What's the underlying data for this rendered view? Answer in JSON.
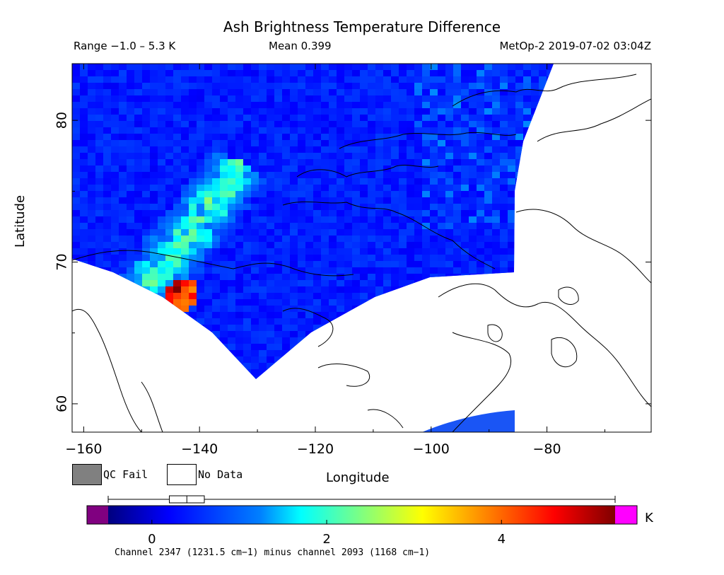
{
  "header": {
    "title": "Ash Brightness Temperature Difference",
    "range_text": "Range −1.0 – 5.3 K",
    "mean_text": "Mean 0.399",
    "satellite_text": "MetOp-2 2019-07-02 03:04Z"
  },
  "map": {
    "xlabel": "Longitude",
    "ylabel": "Latitude",
    "lon_range": [
      -162,
      -62
    ],
    "lat_range": [
      58,
      84
    ],
    "x_ticks": [
      -160,
      -140,
      -120,
      -100,
      -80
    ],
    "y_ticks": [
      60,
      70,
      80
    ],
    "x_tick_labels": [
      "−160",
      "−140",
      "−120",
      "−100",
      "−80"
    ],
    "y_tick_labels": [
      "60",
      "70",
      "80"
    ]
  },
  "legend": {
    "qc_fail": "QC Fail",
    "no_data": "No Data",
    "qc_color": "#808080"
  },
  "colorbar": {
    "unit": "K",
    "tick_values": [
      0,
      2,
      4
    ],
    "tick_labels": [
      "0",
      "2",
      "4"
    ],
    "scale_min": -0.5,
    "scale_max": 5.3,
    "under_color": "#800080",
    "over_color": "#ff00ff",
    "box_stats": {
      "low": -0.5,
      "q1": 0.2,
      "median": 0.4,
      "q3": 0.6,
      "high": 5.3
    }
  },
  "footnote": "Channel 2347 (1231.5 cm−1) minus channel 2093 (1168 cm−1)"
}
